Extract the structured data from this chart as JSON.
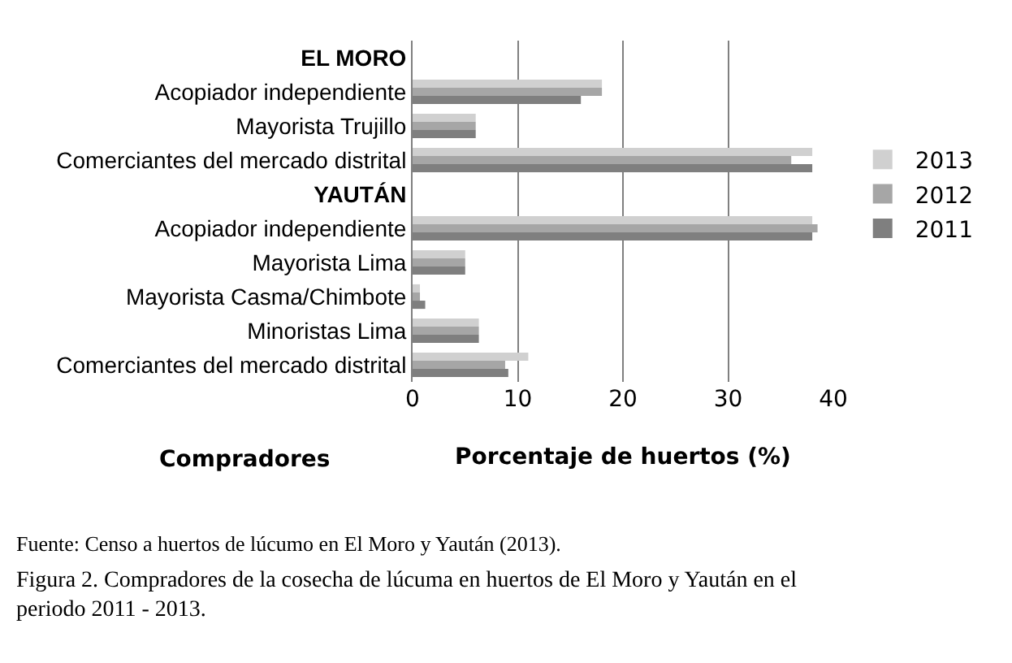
{
  "chart_data": {
    "type": "bar",
    "orientation": "horizontal",
    "categories": [
      "EL MORO",
      "Acopiador independiente",
      "Mayorista Trujillo",
      "Comerciantes del mercado distrital",
      "YAUTÁN",
      "Acopiador independiente",
      "Mayorista Lima",
      "Mayorista Casma/Chimbote",
      "Minoristas Lima",
      "Comerciantes del mercado distrital"
    ],
    "series": [
      {
        "name": "2013",
        "color": "#d0d0d0",
        "values": [
          null,
          18,
          6,
          38,
          null,
          38,
          5,
          0.7,
          6.3,
          11
        ]
      },
      {
        "name": "2012",
        "color": "#a6a6a6",
        "values": [
          null,
          18,
          6,
          36,
          null,
          38.5,
          5,
          0.7,
          6.3,
          8.8
        ]
      },
      {
        "name": "2011",
        "color": "#7f7f7f",
        "values": [
          null,
          16,
          6,
          38,
          null,
          38,
          5,
          1.2,
          6.3,
          9.1
        ]
      }
    ],
    "xlim": [
      0,
      40
    ],
    "xticks": [
      0,
      10,
      20,
      30,
      40
    ],
    "xlabel": "Porcentaje de huertos (%)",
    "ylabel": "Compradores",
    "grid": "x",
    "legend": "right",
    "annotations": [
      "Fuente: Censo a huertos de lúcumo en El Moro y Yaután (2013).",
      "Figura 2. Compradores de la cosecha de lúcuma en huertos de El Moro y Yaután en el periodo 2011 - 2013."
    ]
  }
}
